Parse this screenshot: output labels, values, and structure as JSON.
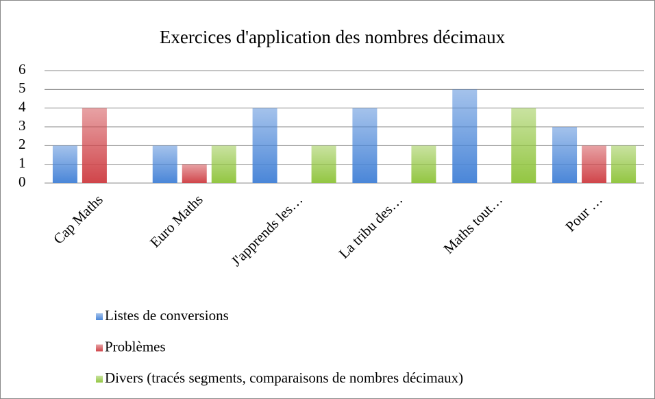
{
  "chart_data": {
    "type": "bar",
    "title": "Exercices d'application des nombres décimaux",
    "categories": [
      "Cap Maths",
      "Euro Maths",
      "J'apprends les…",
      "La tribu des…",
      "Maths tout…",
      "Pour …"
    ],
    "series": [
      {
        "name": "Listes de conversions",
        "color": "#4a86d8",
        "values": [
          2,
          2,
          4,
          4,
          5,
          3
        ]
      },
      {
        "name": "Problèmes",
        "color": "#d0454a",
        "values": [
          4,
          1,
          0,
          0,
          0,
          2
        ]
      },
      {
        "name": "Divers (tracés segments, comparaisons de nombres décimaux)",
        "color": "#93c642",
        "values": [
          0,
          2,
          2,
          2,
          4,
          2
        ]
      }
    ],
    "ylim": [
      0,
      6
    ],
    "yticks": [
      0,
      1,
      2,
      3,
      4,
      5,
      6
    ],
    "grid": true
  }
}
